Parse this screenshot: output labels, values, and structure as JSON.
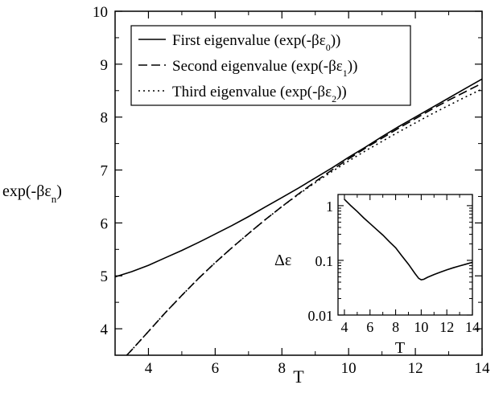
{
  "chart_data": [
    {
      "type": "line",
      "xlabel": "T",
      "ylabel": "exp(-βε_n)",
      "ylabel_parts": {
        "prefix": "exp(-βε",
        "sub": "n",
        "suffix": ")"
      },
      "xlim": [
        3,
        14
      ],
      "ylim": [
        3.5,
        10
      ],
      "xticks": [
        4,
        6,
        8,
        10,
        12,
        14
      ],
      "yticks": [
        4,
        5,
        6,
        7,
        8,
        9,
        10
      ],
      "grid": false,
      "legend_position": "top-left",
      "series": [
        {
          "name": "First eigenvalue (exp(-βε_0))",
          "legend_parts": {
            "prefix": "First eigenvalue (exp(-βε",
            "sub": "0",
            "suffix": "))"
          },
          "style": "solid",
          "x": [
            3.0,
            3.5,
            4.0,
            4.5,
            5.0,
            5.5,
            6.0,
            6.5,
            7.0,
            7.5,
            8.0,
            8.5,
            9.0,
            9.5,
            10.0,
            10.5,
            11.0,
            11.5,
            12.0,
            12.5,
            13.0,
            13.5,
            14.0
          ],
          "y": [
            4.98,
            5.08,
            5.2,
            5.34,
            5.48,
            5.63,
            5.79,
            5.95,
            6.12,
            6.3,
            6.48,
            6.66,
            6.85,
            7.04,
            7.24,
            7.43,
            7.63,
            7.82,
            8.0,
            8.18,
            8.36,
            8.54,
            8.72
          ]
        },
        {
          "name": "Second eigenvalue (exp(-βε_1))",
          "legend_parts": {
            "prefix": "Second eigenvalue (exp(-βε",
            "sub": "1",
            "suffix": "))"
          },
          "style": "dashed",
          "x": [
            3.35,
            3.5,
            4.0,
            4.5,
            5.0,
            5.5,
            6.0,
            6.5,
            7.0,
            7.5,
            8.0,
            8.5,
            9.0,
            9.5,
            10.0,
            10.5,
            11.0,
            11.5,
            12.0,
            12.5,
            13.0,
            13.5,
            14.0
          ],
          "y": [
            3.5,
            3.6,
            3.95,
            4.3,
            4.63,
            4.95,
            5.25,
            5.53,
            5.8,
            6.06,
            6.31,
            6.55,
            6.78,
            7.0,
            7.21,
            7.41,
            7.6,
            7.79,
            7.97,
            8.15,
            8.32,
            8.48,
            8.64
          ]
        },
        {
          "name": "Third eigenvalue (exp(-βε_2))",
          "legend_parts": {
            "prefix": "Third eigenvalue (exp(-βε",
            "sub": "2",
            "suffix": "))"
          },
          "style": "dotted",
          "x": [
            3.35,
            3.5,
            4.0,
            4.5,
            5.0,
            5.5,
            6.0,
            6.5,
            7.0,
            7.5,
            8.0,
            8.5,
            9.0,
            9.5,
            10.0,
            10.5,
            11.0,
            11.5,
            12.0,
            12.5,
            13.0,
            13.5,
            14.0
          ],
          "y": [
            3.5,
            3.6,
            3.95,
            4.3,
            4.63,
            4.95,
            5.25,
            5.53,
            5.8,
            6.06,
            6.31,
            6.54,
            6.76,
            6.97,
            7.17,
            7.36,
            7.54,
            7.72,
            7.89,
            8.06,
            8.22,
            8.38,
            8.53
          ]
        }
      ]
    },
    {
      "type": "line",
      "role": "inset",
      "xlabel": "T",
      "ylabel": "Δε",
      "xlim": [
        3.5,
        14
      ],
      "ylim": [
        0.01,
        1.6
      ],
      "yscale": "log",
      "xticks": [
        4,
        6,
        8,
        10,
        12,
        14
      ],
      "yticks": [
        0.01,
        0.1,
        1
      ],
      "ytick_labels": [
        "0.01",
        "0.1",
        "1"
      ],
      "grid": false,
      "series": [
        {
          "style": "solid",
          "x": [
            4.0,
            4.5,
            5.0,
            5.5,
            6.0,
            6.5,
            7.0,
            7.5,
            8.0,
            8.5,
            9.0,
            9.5,
            9.8,
            10.0,
            10.2,
            10.5,
            11.0,
            11.5,
            12.0,
            12.5,
            13.0,
            13.5,
            14.0
          ],
          "y": [
            1.3,
            1.0,
            0.78,
            0.6,
            0.47,
            0.37,
            0.29,
            0.22,
            0.17,
            0.12,
            0.085,
            0.058,
            0.047,
            0.044,
            0.045,
            0.049,
            0.055,
            0.061,
            0.067,
            0.073,
            0.079,
            0.085,
            0.092
          ]
        }
      ]
    }
  ]
}
